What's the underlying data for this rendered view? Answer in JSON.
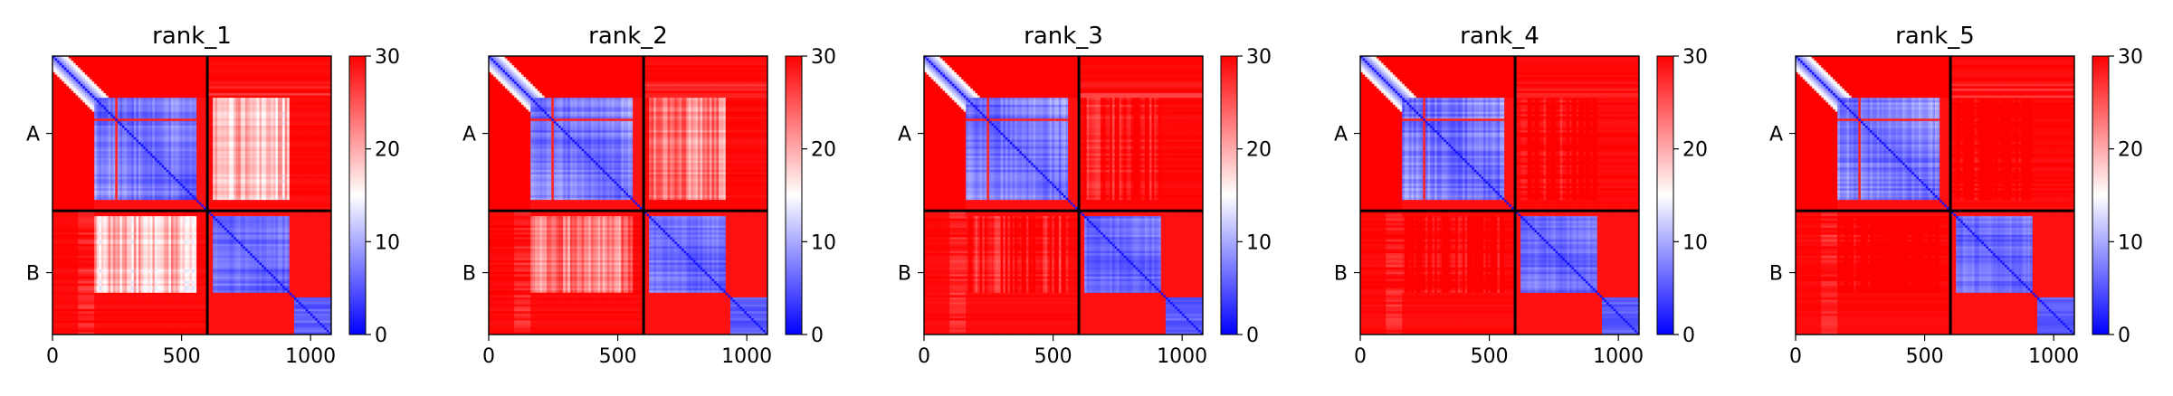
{
  "chart_data": {
    "type": "heatmap",
    "description_kind": "PAE matrices (predicted aligned error), one panel per rank",
    "panels": [
      {
        "title": "rank_1",
        "variant": 1
      },
      {
        "title": "rank_2",
        "variant": 2
      },
      {
        "title": "rank_3",
        "variant": 3
      },
      {
        "title": "rank_4",
        "variant": 4
      },
      {
        "title": "rank_5",
        "variant": 5
      }
    ],
    "xlim": [
      0,
      1080
    ],
    "ylim": [
      0,
      1080
    ],
    "x_ticks": [
      0,
      500,
      1000
    ],
    "x_tick_labels": [
      "0",
      "500",
      "1000"
    ],
    "chain_boundary": 600,
    "chains": [
      {
        "label": "A",
        "start": 0,
        "end": 600
      },
      {
        "label": "B",
        "start": 600,
        "end": 1080
      }
    ],
    "colorbar": {
      "min": 0,
      "max": 30,
      "ticks": [
        0,
        10,
        20,
        30
      ],
      "tick_labels": [
        "0",
        "10",
        "20",
        "30"
      ],
      "colormap": "bwr",
      "low_color": "#0000ff",
      "mid_color": "#ffffff",
      "high_color": "#ff0000"
    },
    "grid": false
  }
}
